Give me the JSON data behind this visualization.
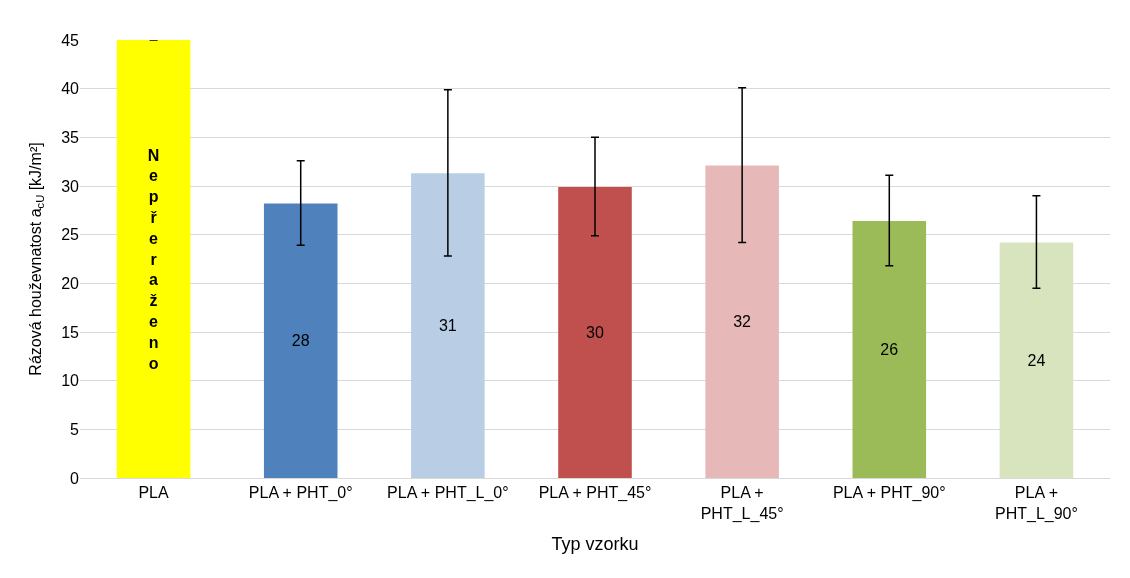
{
  "chart_data": {
    "type": "bar",
    "xlabel": "Typ vzorku",
    "ylabel": "Rázová houževnatost a$_{cU}$ [kJ/m²]",
    "categories": [
      "PLA",
      "PLA + PHT_0°",
      "PLA + PHT_L_0°",
      "PLA + PHT_45°",
      "PLA + PHT_L_45°",
      "PLA + PHT_90°",
      "PLA + PHT_L_90°"
    ],
    "values": [
      45,
      28.2,
      31.3,
      29.9,
      32.1,
      26.4,
      24.2
    ],
    "colors": [
      "#ffff00",
      "#4f81bd",
      "#b9cde5",
      "#c0504d",
      "#e6b9b8",
      "#9bbb59",
      "#d7e4bd"
    ],
    "value_labels": [
      "Nepřeraženo",
      "28",
      "31",
      "30",
      "32",
      "26",
      "24"
    ],
    "errors": [
      null,
      [
        23.9,
        32.6
      ],
      [
        22.8,
        39.9
      ],
      [
        24.9,
        35.0
      ],
      [
        24.2,
        40.1
      ],
      [
        21.8,
        31.1
      ],
      [
        19.5,
        29.0
      ]
    ],
    "ylim": [
      0,
      45
    ],
    "yticks": [
      0,
      5,
      10,
      15,
      20,
      25,
      30,
      35,
      40,
      45
    ],
    "grid": "y",
    "legend": false
  }
}
